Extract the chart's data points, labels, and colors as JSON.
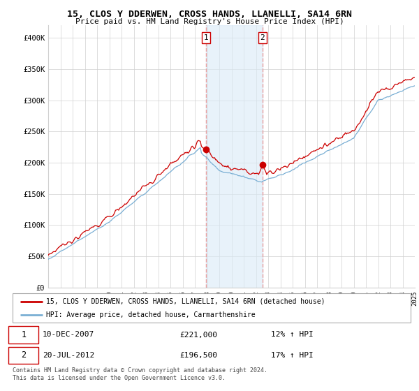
{
  "title": "15, CLOS Y DDERWEN, CROSS HANDS, LLANELLI, SA14 6RN",
  "subtitle": "Price paid vs. HM Land Registry's House Price Index (HPI)",
  "ylim": [
    0,
    420000
  ],
  "yticks": [
    0,
    50000,
    100000,
    150000,
    200000,
    250000,
    300000,
    350000,
    400000
  ],
  "ytick_labels": [
    "£0",
    "£50K",
    "£100K",
    "£150K",
    "£200K",
    "£250K",
    "£300K",
    "£350K",
    "£400K"
  ],
  "xlim": [
    1995,
    2025
  ],
  "sale1_date_num": 2007.92,
  "sale1_price": 221000,
  "sale2_date_num": 2012.54,
  "sale2_price": 196500,
  "line1_color": "#cc0000",
  "line2_color": "#7aafd4",
  "vline_color": "#e8a0a0",
  "shade_color": "#daeaf7",
  "shade_alpha": 0.6,
  "legend1_label": "15, CLOS Y DDERWEN, CROSS HANDS, LLANELLI, SA14 6RN (detached house)",
  "legend2_label": "HPI: Average price, detached house, Carmarthenshire",
  "footer": "Contains HM Land Registry data © Crown copyright and database right 2024.\nThis data is licensed under the Open Government Licence v3.0."
}
